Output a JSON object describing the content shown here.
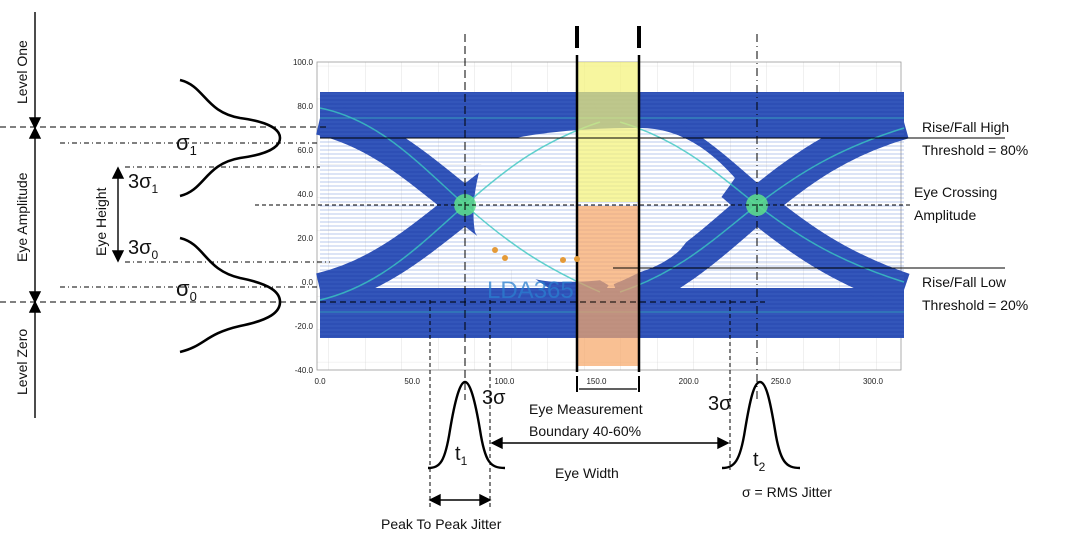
{
  "labels": {
    "level_one": "Level One",
    "eye_amplitude": "Eye Amplitude",
    "level_zero": "Level Zero",
    "eye_height": "Eye Height",
    "sigma1": "σ1",
    "three_sigma1": "3σ1",
    "three_sigma0": "3σ0",
    "sigma0": "σ0",
    "rise_fall_high": [
      "Rise/Fall High",
      "Threshold = 80%"
    ],
    "eye_crossing": [
      "Eye Crossing",
      "Amplitude"
    ],
    "rise_fall_low": [
      "Rise/Fall Low",
      "Threshold = 20%"
    ],
    "eye_measurement": [
      "Eye Measurement",
      "Boundary 40-60%"
    ],
    "eye_width": "Eye Width",
    "three_sigma_left": "3σ",
    "three_sigma_right": "3σ",
    "t1": "t1",
    "t2": "t2",
    "rms_jitter": "σ = RMS Jitter",
    "peak_to_peak": "Peak To Peak Jitter",
    "watermark": "LDA365"
  },
  "axes": {
    "y_ticks": [
      "100.0",
      "80.0",
      "60.0",
      "40.0",
      "20.0",
      "0.0",
      "-20.0",
      "-40.0"
    ],
    "x_ticks": [
      "0.0",
      "50.0",
      "100.0",
      "150.0",
      "200.0",
      "250.0",
      "300.0"
    ]
  },
  "colors": {
    "eye": "#2d4fb5",
    "eye_dark": "#1f3a9a",
    "trace": "#39c7c0",
    "crossing": "#5ee08a",
    "yellow_band": "#f4f27a",
    "orange_band": "#f7a86a"
  }
}
